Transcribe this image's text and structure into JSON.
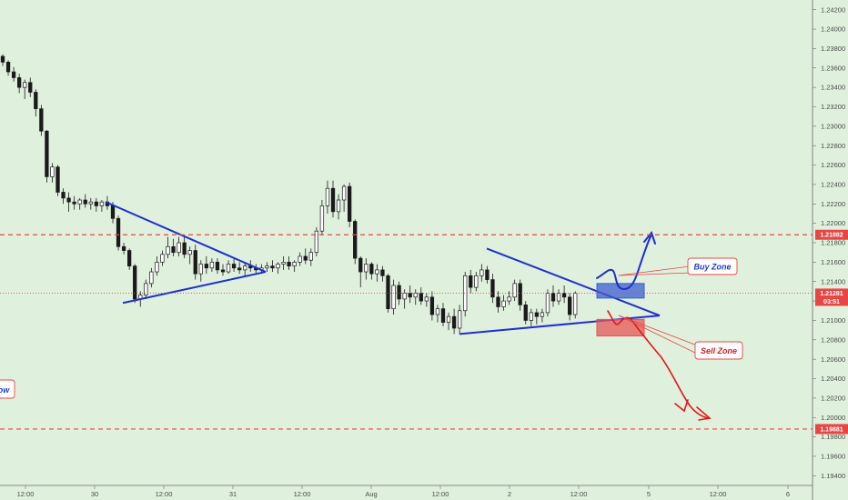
{
  "chart_data": {
    "type": "candlestick",
    "y_axis": {
      "side": "right",
      "ylim": [
        1.193,
        1.243
      ],
      "ticks": [
        "1.24200",
        "1.24000",
        "1.23800",
        "1.23600",
        "1.23400",
        "1.23200",
        "1.23000",
        "1.22800",
        "1.22600",
        "1.22400",
        "1.22200",
        "1.22000",
        "1.21800",
        "1.21600",
        "1.21400",
        "1.21200",
        "1.21000",
        "1.20800",
        "1.20600",
        "1.20400",
        "1.20200",
        "1.20000",
        "1.19800",
        "1.19600",
        "1.19400"
      ],
      "tick_values": [
        1.242,
        1.24,
        1.238,
        1.236,
        1.234,
        1.232,
        1.23,
        1.228,
        1.226,
        1.224,
        1.222,
        1.22,
        1.218,
        1.216,
        1.214,
        1.212,
        1.21,
        1.208,
        1.206,
        1.204,
        1.202,
        1.2,
        1.198,
        1.196,
        1.194
      ]
    },
    "x_axis": {
      "ticks": [
        "12:00",
        "30",
        "12:00",
        "31",
        "12:00",
        "Aug",
        "12:00",
        "2",
        "12:00",
        "5",
        "12:00",
        "6"
      ]
    },
    "levels": [
      {
        "price": 1.21882,
        "label": "1.21882",
        "color": "#e84545",
        "style": "dashed"
      },
      {
        "price": 1.19881,
        "label": "1.19881",
        "color": "#e84545",
        "style": "dashed"
      }
    ],
    "current_price": {
      "price": 1.21281,
      "label": "1.21281",
      "countdown": "03:51",
      "color": "#e84545"
    },
    "candles": [
      [
        1.2372,
        1.2374,
        1.2362,
        1.2366
      ],
      [
        1.2366,
        1.2368,
        1.2352,
        1.2356
      ],
      [
        1.2356,
        1.2361,
        1.2346,
        1.235
      ],
      [
        1.235,
        1.2354,
        1.2334,
        1.234
      ],
      [
        1.234,
        1.2348,
        1.2328,
        1.2345
      ],
      [
        1.2345,
        1.235,
        1.233,
        1.2335
      ],
      [
        1.2335,
        1.2338,
        1.231,
        1.2318
      ],
      [
        1.2318,
        1.2322,
        1.229,
        1.2295
      ],
      [
        1.2295,
        1.2296,
        1.2242,
        1.2248
      ],
      [
        1.2248,
        1.2262,
        1.2242,
        1.2258
      ],
      [
        1.2258,
        1.226,
        1.2228,
        1.2232
      ],
      [
        1.2232,
        1.2236,
        1.222,
        1.2226
      ],
      [
        1.2226,
        1.2232,
        1.2212,
        1.2222
      ],
      [
        1.2222,
        1.2228,
        1.2214,
        1.222
      ],
      [
        1.222,
        1.2226,
        1.2214,
        1.2224
      ],
      [
        1.2224,
        1.223,
        1.2216,
        1.222
      ],
      [
        1.222,
        1.2226,
        1.2214,
        1.2222
      ],
      [
        1.2222,
        1.2226,
        1.2212,
        1.2218
      ],
      [
        1.2218,
        1.2224,
        1.2212,
        1.2222
      ],
      [
        1.2222,
        1.2228,
        1.2214,
        1.2218
      ],
      [
        1.2218,
        1.2222,
        1.22,
        1.2205
      ],
      [
        1.2205,
        1.2208,
        1.2172,
        1.2176
      ],
      [
        1.2176,
        1.218,
        1.2168,
        1.2172
      ],
      [
        1.2172,
        1.2174,
        1.2152,
        1.2156
      ],
      [
        1.2156,
        1.2158,
        1.2118,
        1.2122
      ],
      [
        1.2122,
        1.213,
        1.2114,
        1.2126
      ],
      [
        1.2126,
        1.2142,
        1.2122,
        1.2138
      ],
      [
        1.2138,
        1.2154,
        1.2134,
        1.215
      ],
      [
        1.215,
        1.2166,
        1.2146,
        1.216
      ],
      [
        1.216,
        1.2172,
        1.2156,
        1.2168
      ],
      [
        1.2168,
        1.2186,
        1.2164,
        1.2176
      ],
      [
        1.2176,
        1.2184,
        1.2166,
        1.217
      ],
      [
        1.217,
        1.2186,
        1.2166,
        1.218
      ],
      [
        1.218,
        1.2186,
        1.2164,
        1.2168
      ],
      [
        1.2168,
        1.2176,
        1.2158,
        1.2172
      ],
      [
        1.2172,
        1.2178,
        1.2142,
        1.2148
      ],
      [
        1.2148,
        1.2162,
        1.214,
        1.2158
      ],
      [
        1.2158,
        1.2166,
        1.2148,
        1.2154
      ],
      [
        1.2154,
        1.2164,
        1.215,
        1.216
      ],
      [
        1.216,
        1.2164,
        1.2148,
        1.2152
      ],
      [
        1.2152,
        1.2158,
        1.2146,
        1.215
      ],
      [
        1.215,
        1.2162,
        1.2148,
        1.2158
      ],
      [
        1.2158,
        1.2164,
        1.215,
        1.2154
      ],
      [
        1.2154,
        1.216,
        1.2148,
        1.2152
      ],
      [
        1.2152,
        1.216,
        1.2146,
        1.2156
      ],
      [
        1.2156,
        1.2162,
        1.215,
        1.2154
      ],
      [
        1.2154,
        1.2158,
        1.2148,
        1.2152
      ],
      [
        1.2152,
        1.2158,
        1.2148,
        1.2154
      ],
      [
        1.2154,
        1.216,
        1.215,
        1.2156
      ],
      [
        1.2156,
        1.2162,
        1.215,
        1.2154
      ],
      [
        1.2154,
        1.216,
        1.2148,
        1.2158
      ],
      [
        1.2158,
        1.2166,
        1.2152,
        1.216
      ],
      [
        1.216,
        1.2166,
        1.2152,
        1.2156
      ],
      [
        1.2156,
        1.2162,
        1.215,
        1.216
      ],
      [
        1.216,
        1.217,
        1.2156,
        1.2166
      ],
      [
        1.2166,
        1.2174,
        1.2158,
        1.2162
      ],
      [
        1.2162,
        1.2174,
        1.2156,
        1.217
      ],
      [
        1.217,
        1.2196,
        1.2166,
        1.2192
      ],
      [
        1.2192,
        1.2224,
        1.2188,
        1.2218
      ],
      [
        1.2218,
        1.2244,
        1.221,
        1.2236
      ],
      [
        1.2236,
        1.2244,
        1.2206,
        1.2212
      ],
      [
        1.2212,
        1.223,
        1.2204,
        1.2224
      ],
      [
        1.2224,
        1.224,
        1.2212,
        1.2238
      ],
      [
        1.2238,
        1.2242,
        1.2196,
        1.2202
      ],
      [
        1.2202,
        1.2204,
        1.2158,
        1.2164
      ],
      [
        1.2164,
        1.2166,
        1.2134,
        1.215
      ],
      [
        1.215,
        1.2164,
        1.2142,
        1.2158
      ],
      [
        1.2158,
        1.216,
        1.2142,
        1.2148
      ],
      [
        1.2148,
        1.2158,
        1.214,
        1.2152
      ],
      [
        1.2152,
        1.2156,
        1.214,
        1.2146
      ],
      [
        1.2146,
        1.2148,
        1.2108,
        1.2112
      ],
      [
        1.2112,
        1.2142,
        1.2106,
        1.2136
      ],
      [
        1.2136,
        1.214,
        1.2116,
        1.2122
      ],
      [
        1.2122,
        1.2132,
        1.2112,
        1.2128
      ],
      [
        1.2128,
        1.2136,
        1.2118,
        1.2124
      ],
      [
        1.2124,
        1.2132,
        1.2116,
        1.2128
      ],
      [
        1.2128,
        1.2134,
        1.2116,
        1.212
      ],
      [
        1.212,
        1.2128,
        1.2114,
        1.2124
      ],
      [
        1.2124,
        1.213,
        1.21,
        1.2106
      ],
      [
        1.2106,
        1.2116,
        1.2098,
        1.2112
      ],
      [
        1.2112,
        1.2118,
        1.2094,
        1.2098
      ],
      [
        1.2098,
        1.2108,
        1.209,
        1.2104
      ],
      [
        1.2104,
        1.2112,
        1.2086,
        1.2092
      ],
      [
        1.2092,
        1.2116,
        1.2086,
        1.211
      ],
      [
        1.211,
        1.215,
        1.2104,
        1.2146
      ],
      [
        1.2146,
        1.2152,
        1.2128,
        1.2134
      ],
      [
        1.2134,
        1.215,
        1.213,
        1.2146
      ],
      [
        1.2146,
        1.2158,
        1.214,
        1.2152
      ],
      [
        1.2152,
        1.2156,
        1.2138,
        1.2142
      ],
      [
        1.2142,
        1.2148,
        1.2118,
        1.2124
      ],
      [
        1.2124,
        1.213,
        1.2108,
        1.2114
      ],
      [
        1.2114,
        1.2126,
        1.211,
        1.212
      ],
      [
        1.212,
        1.213,
        1.2116,
        1.2124
      ],
      [
        1.2124,
        1.2142,
        1.212,
        1.2138
      ],
      [
        1.2138,
        1.2142,
        1.211,
        1.2116
      ],
      [
        1.2116,
        1.212,
        1.2096,
        1.21
      ],
      [
        1.21,
        1.2112,
        1.2094,
        1.2108
      ],
      [
        1.2108,
        1.2112,
        1.2096,
        1.2104
      ],
      [
        1.2104,
        1.2112,
        1.2098,
        1.2108
      ],
      [
        1.2108,
        1.2132,
        1.2104,
        1.2128
      ],
      [
        1.2128,
        1.2136,
        1.2114,
        1.212
      ],
      [
        1.212,
        1.2132,
        1.2116,
        1.2128
      ],
      [
        1.2128,
        1.2136,
        1.2118,
        1.2124
      ],
      [
        1.2124,
        1.2128,
        1.21,
        1.2106
      ],
      [
        1.2106,
        1.213,
        1.2102,
        1.2128
      ]
    ],
    "drawings": [
      {
        "type": "triangle",
        "name": "left-triangle",
        "color": "#1f2fd0",
        "points": [
          [
            116,
            1.2222
          ],
          [
            292,
            1.215
          ],
          [
            135,
            1.2118
          ]
        ]
      },
      {
        "type": "triangle",
        "name": "right-triangle",
        "color": "#1f2fd0",
        "points": [
          [
            535,
            1.2174
          ],
          [
            725,
            1.2105
          ],
          [
            505,
            1.2086
          ]
        ]
      },
      {
        "type": "box",
        "name": "buy-zone-box",
        "color": "#3b5fd0",
        "price_top": 1.2138,
        "price_bottom": 1.2123
      },
      {
        "type": "box",
        "name": "sell-zone-box",
        "color": "#e55555",
        "price_top": 1.2101,
        "price_bottom": 1.2084
      }
    ],
    "annotations": [
      {
        "text": "Buy Zone",
        "color": "#1d3fbf"
      },
      {
        "text": "Sell Zone",
        "color": "#d0202a"
      },
      {
        "text": "ow",
        "color": "#1d3fbf"
      }
    ]
  }
}
